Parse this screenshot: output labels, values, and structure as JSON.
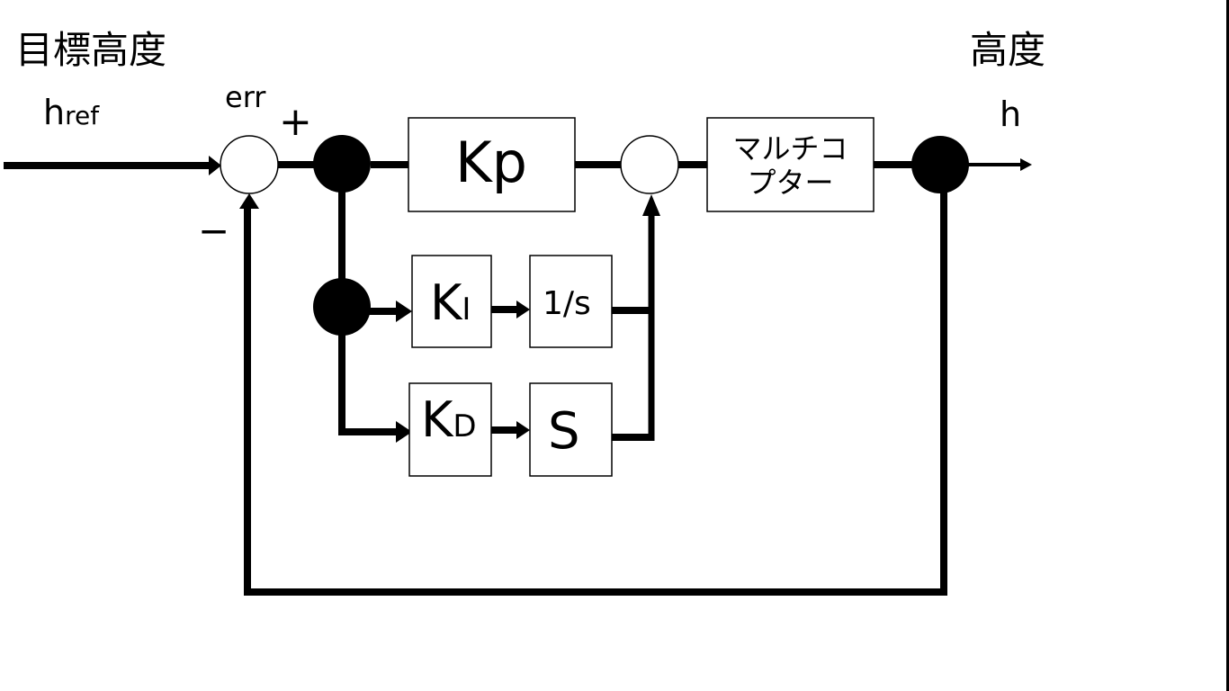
{
  "labels": {
    "target_altitude": "目標高度",
    "altitude": "高度",
    "href_main": "h",
    "href_sub": "ref",
    "err": "err",
    "plus": "+",
    "minus": "−",
    "output_h": "h"
  },
  "blocks": {
    "kp": "Kp",
    "ki_main": "K",
    "ki_sub": "I",
    "integrator": "1/s",
    "kd_main": "K",
    "kd_sub": "D",
    "derivative": "S",
    "multicopter_line1": "マルチコ",
    "multicopter_line2": "プター"
  },
  "colors": {
    "line": "#000000",
    "background": "#ffffff"
  }
}
